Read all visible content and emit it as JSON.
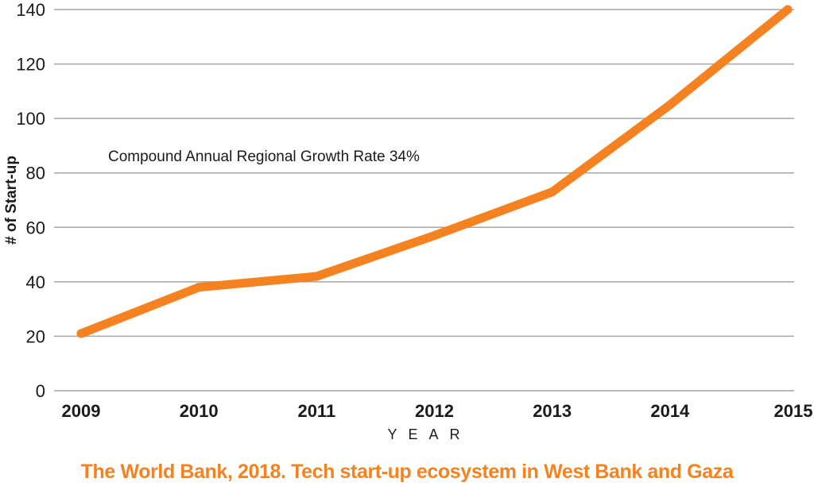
{
  "chart_data": {
    "type": "line",
    "categories": [
      "2009",
      "2010",
      "2011",
      "2012",
      "2013",
      "2014",
      "2015"
    ],
    "series": [
      {
        "values": [
          21,
          38,
          42,
          57,
          73,
          105,
          140
        ]
      }
    ],
    "ylabel": "# of Start-up",
    "xlabel": "YEAR",
    "ylim": [
      0,
      140
    ],
    "yticks": [
      "0",
      "20",
      "40",
      "60",
      "80",
      "100",
      "120",
      "140"
    ],
    "grid": true,
    "annotation": "Compound Annual Regional Growth Rate 34%",
    "line_color": "#F58220",
    "grid_color": "#a6a6a6"
  },
  "caption": {
    "text": "The World Bank, 2018. Tech start-up ecosystem in West Bank and Gaza",
    "color": "#F58220"
  }
}
